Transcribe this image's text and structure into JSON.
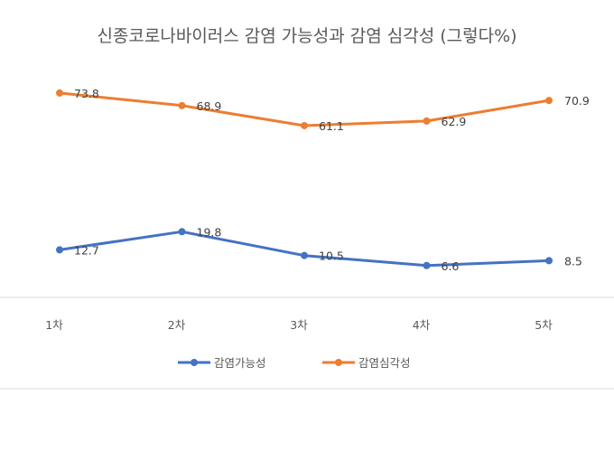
{
  "chart_data": {
    "type": "line",
    "title": "신종코로나바이러스 감염 가능성과 감염 심각성 (그렇다%)",
    "categories": [
      "1차",
      "2차",
      "3차",
      "4차",
      "5차"
    ],
    "series": [
      {
        "name": "감염가능성",
        "values": [
          12.7,
          19.8,
          10.5,
          6.6,
          8.5
        ],
        "color": "#4472C4"
      },
      {
        "name": "감염심각성",
        "values": [
          73.8,
          68.9,
          61.1,
          62.9,
          70.9
        ],
        "color": "#ED7D31"
      }
    ],
    "ylim": [
      0,
      80
    ],
    "xlabel": "",
    "ylabel": "",
    "grid": false,
    "legend": "bottom"
  }
}
